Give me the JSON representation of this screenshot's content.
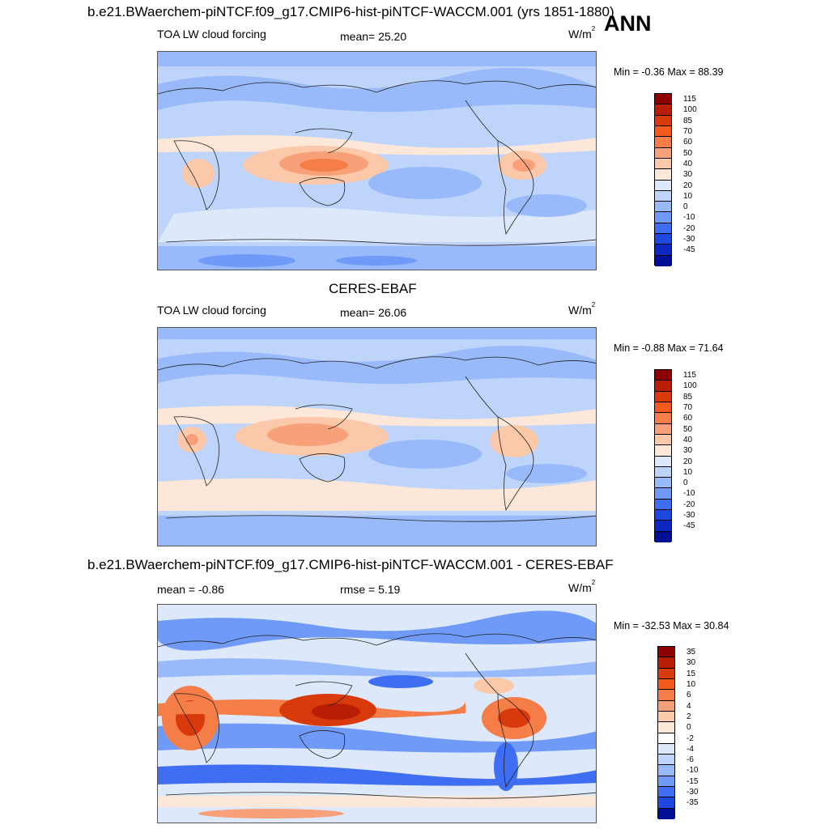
{
  "season": "ANN",
  "panels": [
    {
      "title": "b.e21.BWaerchem-piNTCF.f09_g17.CMIP6-hist-piNTCF-WACCM.001 (yrs 1851-1880)",
      "variable": "TOA LW cloud forcing",
      "stat_left": "",
      "stat_mid": "mean=  25.20",
      "unit_base": "W/m",
      "unit_exp": "2",
      "minmax": "Min =  -0.36 Max =  88.39",
      "levels": [
        "115",
        "100",
        "85",
        "70",
        "60",
        "50",
        "40",
        "30",
        "20",
        "10",
        "0",
        "-10",
        "-20",
        "-30",
        "-45"
      ],
      "colors": [
        "#8b0000",
        "#b81e05",
        "#d93a0c",
        "#f25a1e",
        "#f57d48",
        "#f7a07a",
        "#fbc8a9",
        "#fde7d8",
        "#dde9fb",
        "#bfd4fa",
        "#99bafa",
        "#6f9af7",
        "#3f6ef2",
        "#1f48e0",
        "#0d28c2",
        "#001096"
      ]
    },
    {
      "title": "CERES-EBAF",
      "variable": "TOA LW cloud forcing",
      "stat_left": "",
      "stat_mid": "mean=  26.06",
      "unit_base": "W/m",
      "unit_exp": "2",
      "minmax": "Min =  -0.88 Max =  71.64",
      "levels": [
        "115",
        "100",
        "85",
        "70",
        "60",
        "50",
        "40",
        "30",
        "20",
        "10",
        "0",
        "-10",
        "-20",
        "-30",
        "-45"
      ],
      "colors": [
        "#8b0000",
        "#b81e05",
        "#d93a0c",
        "#f25a1e",
        "#f57d48",
        "#f7a07a",
        "#fbc8a9",
        "#fde7d8",
        "#dde9fb",
        "#bfd4fa",
        "#99bafa",
        "#6f9af7",
        "#3f6ef2",
        "#1f48e0",
        "#0d28c2",
        "#001096"
      ]
    },
    {
      "title": "b.e21.BWaerchem-piNTCF.f09_g17.CMIP6-hist-piNTCF-WACCM.001 - CERES-EBAF",
      "variable": "",
      "stat_left": "mean =  -0.86",
      "stat_mid": "rmse =   5.19",
      "unit_base": "W/m",
      "unit_exp": "2",
      "minmax": "Min = -32.53 Max =  30.84",
      "levels": [
        "35",
        "30",
        "15",
        "10",
        "6",
        "4",
        "2",
        "0",
        "-2",
        "-4",
        "-6",
        "-10",
        "-15",
        "-30",
        "-35"
      ],
      "colors": [
        "#8b0000",
        "#b81e05",
        "#d93a0c",
        "#f25a1e",
        "#f57d48",
        "#f7a07a",
        "#fbc8a9",
        "#fde7d8",
        "#ffffff",
        "#dde9fb",
        "#bfd4fa",
        "#99bafa",
        "#6f9af7",
        "#3f6ef2",
        "#1f48e0",
        "#001096"
      ]
    }
  ]
}
